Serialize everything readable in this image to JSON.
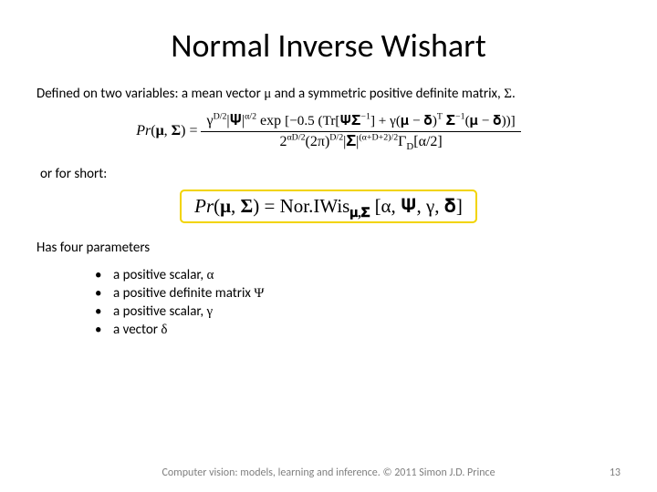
{
  "title": {
    "text": "Normal Inverse Wishart",
    "fontsize": 36,
    "color": "#000000"
  },
  "intro": {
    "prefix": "Defined on two variables: a mean vector ",
    "mu": "μ",
    "middle": " and a symmetric positive definite matrix, ",
    "sigma": "Σ",
    "suffix": ".",
    "fontsize": 15
  },
  "formula_big": {
    "lhs": "Pr(𝛍, 𝚺) = ",
    "num_a": "γ",
    "num_b": "D/2",
    "num_c": "|𝚿|",
    "num_d": "α/2",
    "num_e": " exp ",
    "num_f": "[−0.5 (Tr[𝚿𝚺",
    "num_g": "−1",
    "num_h": "] + γ(𝛍 − 𝛅)",
    "num_i": "T",
    "num_j": " 𝚺",
    "num_k": "−1",
    "num_l": "(𝛍 − 𝛅))]",
    "den_a": "2",
    "den_b": "αD/2",
    "den_c": "(2π)",
    "den_d": "D/2",
    "den_e": "|𝚺|",
    "den_f": "(α+D+2)/2",
    "den_g": "Γ",
    "den_h": "D",
    "den_i": "[α/2]",
    "fontsize": 16
  },
  "short_label": {
    "text": "or for short:",
    "fontsize": 15
  },
  "formula_short": {
    "lhs_a": "Pr(𝛍, 𝚺) = Nor.IWis",
    "sub": "𝛍,𝚺",
    "rhs": " [α, 𝚿, γ, 𝛅]",
    "fontsize": 21,
    "border_color": "#f2d400",
    "background": "#ffffff"
  },
  "params_label": {
    "text": "Has four parameters",
    "fontsize": 15
  },
  "params": [
    {
      "text": "a positive scalar, ",
      "sym": "α"
    },
    {
      "text": "a positive definite matrix ",
      "sym": "Ψ"
    },
    {
      "text": "a positive scalar, ",
      "sym": "γ"
    },
    {
      "text": "a vector ",
      "sym": "δ"
    }
  ],
  "params_fontsize": 15,
  "footer": {
    "credit": "Computer vision: models, learning and inference.   © 2011 Simon J.D. Prince",
    "page": "13",
    "fontsize": 12,
    "color": "#7f7f7f"
  }
}
